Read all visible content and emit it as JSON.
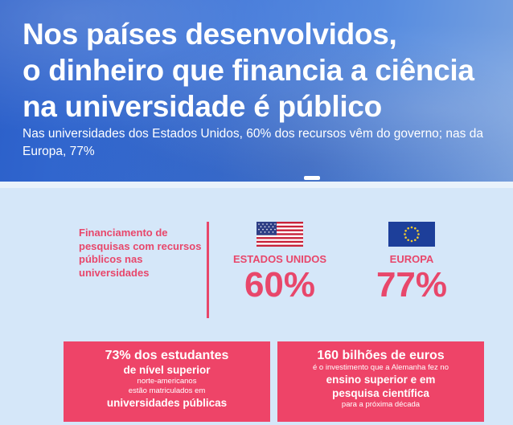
{
  "header": {
    "title_line1": "Nos países desenvolvidos,",
    "title_line2": "o dinheiro que financia a ciência",
    "title_line3": "na universidade é público",
    "subtitle": "Nas universidades dos Estados Unidos, 60% dos recursos vêm do governo; nas da Europa, 77%"
  },
  "stats": {
    "label": "Financiamento de pesquisas com recursos públicos nas universidades",
    "us": {
      "name": "ESTADOS UNIDOS",
      "value": "60%",
      "flag": "us-flag-icon"
    },
    "eu": {
      "name": "EUROPA",
      "value": "77%",
      "flag": "eu-flag-icon"
    }
  },
  "card_left": {
    "line1": "73% dos estudantes",
    "line2": "de nível superior",
    "line3": "norte-americanos",
    "line4": "estão matriculados em",
    "line5": "universidades públicas"
  },
  "card_right": {
    "line1": "160 bilhões de euros",
    "line2": "é o investimento que a Alemanha fez no",
    "line3": "ensino superior e em",
    "line4": "pesquisa científica",
    "line5": "para a próxima década"
  },
  "colors": {
    "accent": "#e8476b",
    "hero_blue": "#3c74d8",
    "background": "#d5e7f9"
  }
}
